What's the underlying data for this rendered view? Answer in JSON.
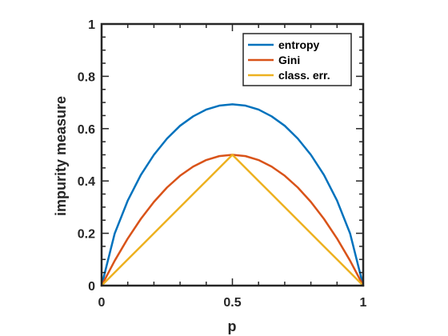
{
  "chart_data": {
    "type": "line",
    "xlabel": "p",
    "ylabel": "impurity measure",
    "xlim": [
      0,
      1
    ],
    "ylim": [
      0,
      1
    ],
    "x_ticks": [
      0,
      0.5,
      1
    ],
    "x_tick_labels": [
      "0",
      "0.5",
      "1"
    ],
    "y_ticks": [
      0,
      0.2,
      0.4,
      0.6,
      0.8,
      1
    ],
    "y_tick_labels": [
      "0",
      "0.2",
      "0.4",
      "0.6",
      "0.8",
      "1"
    ],
    "grid": false,
    "legend_position": "top-right",
    "x": [
      0,
      0.05,
      0.1,
      0.15,
      0.2,
      0.25,
      0.3,
      0.35,
      0.4,
      0.45,
      0.5,
      0.55,
      0.6,
      0.65,
      0.7,
      0.75,
      0.8,
      0.85,
      0.9,
      0.95,
      1
    ],
    "series": [
      {
        "name": "entropy",
        "color": "#0072bd",
        "values": [
          0,
          0.199,
          0.325,
          0.423,
          0.5,
          0.562,
          0.611,
          0.647,
          0.673,
          0.688,
          0.693,
          0.688,
          0.673,
          0.647,
          0.611,
          0.562,
          0.5,
          0.423,
          0.325,
          0.199,
          0
        ]
      },
      {
        "name": "Gini",
        "color": "#d95319",
        "values": [
          0,
          0.095,
          0.18,
          0.255,
          0.32,
          0.375,
          0.42,
          0.455,
          0.48,
          0.495,
          0.5,
          0.495,
          0.48,
          0.455,
          0.42,
          0.375,
          0.32,
          0.255,
          0.18,
          0.095,
          0
        ]
      },
      {
        "name": "class. err.",
        "color": "#edb120",
        "values": [
          0,
          0.05,
          0.1,
          0.15,
          0.2,
          0.25,
          0.3,
          0.35,
          0.4,
          0.45,
          0.5,
          0.45,
          0.4,
          0.35,
          0.3,
          0.25,
          0.2,
          0.15,
          0.1,
          0.05,
          0
        ]
      }
    ]
  }
}
